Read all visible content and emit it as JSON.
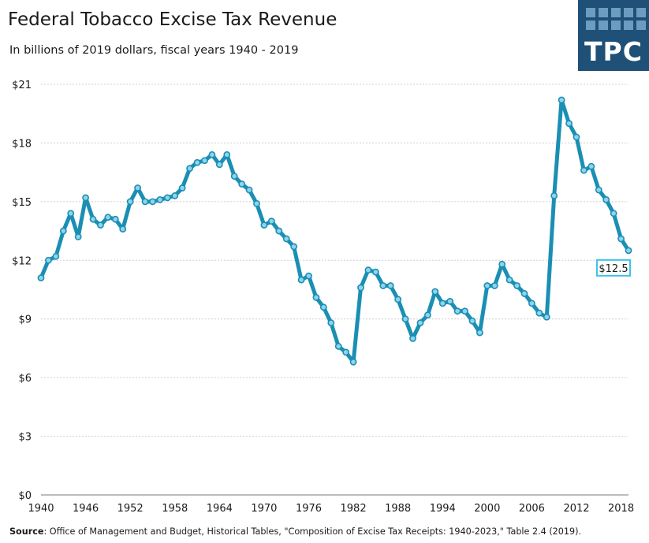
{
  "title": "Federal Tobacco Excise Tax Revenue",
  "subtitle": "In billions of 2019 dollars, fiscal years 1940 - 2019",
  "logo_text": "TPC",
  "source_label": "Source",
  "source_text": ": Office of Management and Budget, Historical Tables, \"Composition of Excise Tax Receipts: 1940-2023,\" Table 2.4 (2019).",
  "colors": {
    "line": "#1a8fb3",
    "marker_fill": "#8fd3ec",
    "grid": "#cfcfcf",
    "callout_border": "#3ec3ec",
    "logo_bg": "#1f5077",
    "logo_squares": "#6d9cc1"
  },
  "chart_data": {
    "type": "line",
    "title": "Federal Tobacco Excise Tax Revenue",
    "subtitle": "In billions of 2019 dollars, fiscal years 1940 - 2019",
    "xlabel": "",
    "ylabel": "",
    "ylim": [
      0,
      21
    ],
    "xlim": [
      1940,
      2019
    ],
    "grid": true,
    "y_ticks": [
      "$0",
      "$3",
      "$6",
      "$9",
      "$12",
      "$15",
      "$18",
      "$21"
    ],
    "y_tick_values": [
      0,
      3,
      6,
      9,
      12,
      15,
      18,
      21
    ],
    "x_ticks": [
      "1940",
      "1946",
      "1952",
      "1958",
      "1964",
      "1970",
      "1976",
      "1982",
      "1988",
      "1994",
      "2000",
      "2006",
      "2012",
      "2018"
    ],
    "x_tick_values": [
      1940,
      1946,
      1952,
      1958,
      1964,
      1970,
      1976,
      1982,
      1988,
      1994,
      2000,
      2006,
      2012,
      2018
    ],
    "annotation": {
      "x": 2019,
      "y": 12.5,
      "label": "$12.5"
    },
    "series": [
      {
        "x": [
          1940,
          1941,
          1942,
          1943,
          1944,
          1945,
          1946,
          1947,
          1948,
          1949,
          1950,
          1951,
          1952,
          1953,
          1954,
          1955,
          1956,
          1957,
          1958,
          1959,
          1960,
          1961,
          1962,
          1963,
          1964,
          1965,
          1966,
          1967,
          1968,
          1969,
          1970,
          1971,
          1972,
          1973,
          1974,
          1975,
          1976,
          1977,
          1978,
          1979,
          1980,
          1981,
          1982,
          1983,
          1984,
          1985,
          1986,
          1987,
          1988,
          1989,
          1990,
          1991,
          1992,
          1993,
          1994,
          1995,
          1996,
          1997,
          1998,
          1999,
          2000,
          2001,
          2002,
          2003,
          2004,
          2005,
          2006,
          2007,
          2008,
          2009,
          2010,
          2011,
          2012,
          2013,
          2014,
          2015,
          2016,
          2017,
          2018,
          2019
        ],
        "values": [
          11.1,
          12.0,
          12.2,
          13.5,
          14.4,
          13.2,
          15.2,
          14.1,
          13.8,
          14.2,
          14.1,
          13.6,
          15.0,
          15.7,
          15.0,
          15.0,
          15.1,
          15.2,
          15.3,
          15.7,
          16.7,
          17.0,
          17.1,
          17.4,
          16.9,
          17.4,
          16.3,
          15.9,
          15.6,
          14.9,
          13.8,
          14.0,
          13.5,
          13.1,
          12.7,
          11.0,
          11.2,
          10.1,
          9.6,
          8.8,
          7.6,
          7.3,
          6.8,
          10.6,
          11.5,
          11.4,
          10.7,
          10.7,
          10.0,
          9.0,
          8.0,
          8.8,
          9.2,
          10.4,
          9.8,
          9.9,
          9.4,
          9.4,
          8.9,
          8.3,
          10.7,
          10.7,
          11.8,
          11.0,
          10.7,
          10.3,
          9.8,
          9.3,
          9.1,
          15.3,
          20.2,
          19.0,
          18.3,
          16.6,
          16.8,
          15.6,
          15.1,
          14.4,
          13.1,
          12.5
        ]
      }
    ]
  }
}
